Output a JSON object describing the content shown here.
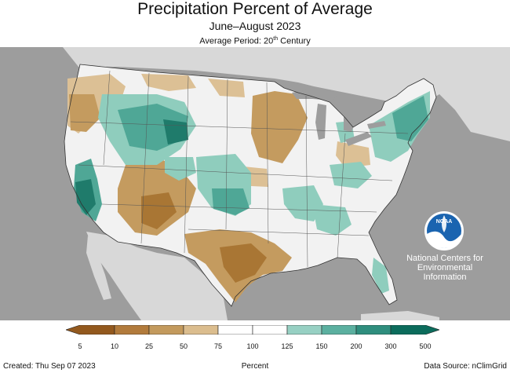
{
  "title": "Precipitation Percent of Average",
  "subtitle": "June–August 2023",
  "average_period": {
    "prefix": "Average Period: 20",
    "sup": "th",
    "suffix": " Century"
  },
  "logo": {
    "icon": "noaa-logo-icon",
    "text": "NOAA"
  },
  "org_text": [
    "National Centers for",
    "Environmental",
    "Information"
  ],
  "legend": {
    "ticks": [
      "5",
      "10",
      "25",
      "50",
      "75",
      "100",
      "125",
      "150",
      "200",
      "300",
      "500"
    ],
    "colors": [
      "#93591e",
      "#b27b3c",
      "#c39a5d",
      "#dbbd8e",
      "#ffffff",
      "#ffffff",
      "#97d0c3",
      "#5bb0a0",
      "#2f8e7e",
      "#0c6c5c"
    ]
  },
  "map_colors": {
    "ocean": "#9d9d9d",
    "land_other": "#d8d8d8",
    "lakes": "#9d9d9d",
    "us_base": "#f2f2f2",
    "dry1": "#dcc095",
    "dry2": "#c49b5f",
    "dry3": "#a97634",
    "wet1": "#8fcdbd",
    "wet2": "#4fa796",
    "wet3": "#1f7b6b"
  },
  "footer": {
    "created": "Created: Thu Sep 07 2023",
    "units": "Percent",
    "source": "Data Source: nClimGrid"
  }
}
